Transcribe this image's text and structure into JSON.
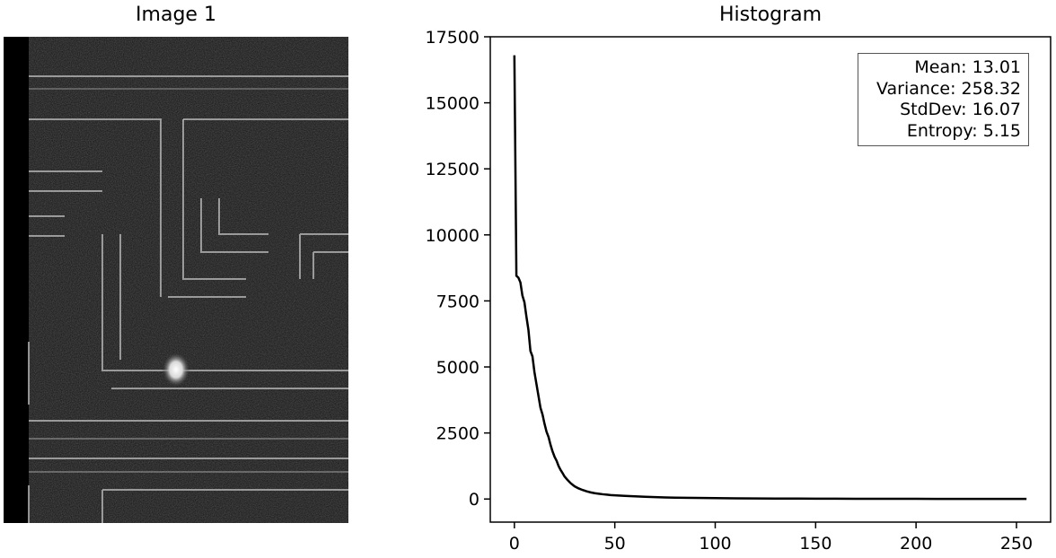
{
  "image_panel": {
    "title": "Image 1"
  },
  "chart_data": {
    "type": "line",
    "title": "Histogram",
    "xlabel": "",
    "ylabel": "",
    "xlim": [
      -12,
      267
    ],
    "ylim": [
      -875,
      17500
    ],
    "x_ticks": [
      0,
      50,
      100,
      150,
      200,
      250
    ],
    "y_ticks": [
      0,
      2500,
      5000,
      7500,
      10000,
      12500,
      15000,
      17500
    ],
    "line_color": "#000000",
    "series": [
      {
        "x": [
          0,
          1,
          2,
          3,
          4,
          5,
          6,
          7,
          8,
          9,
          10,
          11,
          12,
          13,
          14,
          15,
          16,
          17,
          18,
          19,
          20,
          21,
          22,
          23,
          24,
          25,
          26,
          27,
          28,
          29,
          30,
          32,
          34,
          36,
          38,
          40,
          42,
          44,
          46,
          48,
          50,
          55,
          60,
          65,
          70,
          75,
          80,
          90,
          100,
          110,
          120,
          130,
          140,
          150,
          160,
          170,
          180,
          190,
          200,
          210,
          220,
          230,
          240,
          250,
          255
        ],
        "y": [
          16800,
          8450,
          8380,
          8200,
          7700,
          7450,
          6900,
          6400,
          5600,
          5400,
          4800,
          4350,
          3900,
          3450,
          3200,
          2850,
          2550,
          2350,
          2050,
          1800,
          1600,
          1450,
          1250,
          1100,
          980,
          850,
          760,
          680,
          600,
          540,
          480,
          400,
          340,
          290,
          250,
          220,
          200,
          180,
          165,
          150,
          140,
          120,
          100,
          85,
          70,
          60,
          50,
          40,
          32,
          26,
          22,
          18,
          15,
          13,
          11,
          9,
          8,
          7,
          6,
          5,
          5,
          4,
          4,
          3,
          3
        ]
      }
    ],
    "stats": [
      "Mean: 13.01",
      "Variance: 258.32",
      "StdDev: 16.07",
      "Entropy: 5.15"
    ],
    "legend_position": "top-right"
  }
}
